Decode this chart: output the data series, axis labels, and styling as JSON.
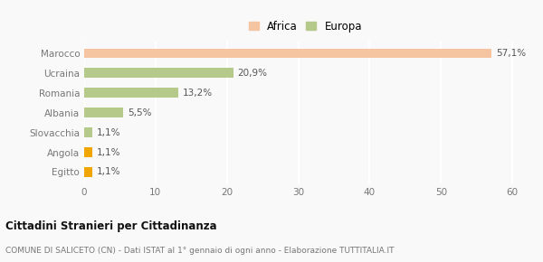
{
  "categories": [
    "Egitto",
    "Angola",
    "Slovacchia",
    "Albania",
    "Romania",
    "Ucraina",
    "Marocco"
  ],
  "values": [
    1.1,
    1.1,
    1.1,
    5.5,
    13.2,
    20.9,
    57.1
  ],
  "labels": [
    "1,1%",
    "1,1%",
    "1,1%",
    "5,5%",
    "13,2%",
    "20,9%",
    "57,1%"
  ],
  "colors": [
    "#f0a500",
    "#f0a500",
    "#b5c98a",
    "#b5c98a",
    "#b5c98a",
    "#b5c98a",
    "#f5c4a0"
  ],
  "legend_items": [
    {
      "label": "Africa",
      "color": "#f5c4a0"
    },
    {
      "label": "Europa",
      "color": "#b5c98a"
    }
  ],
  "xlim": [
    0,
    62
  ],
  "xticks": [
    0,
    10,
    20,
    30,
    40,
    50,
    60
  ],
  "title": "Cittadini Stranieri per Cittadinanza",
  "subtitle": "COMUNE DI SALICETO (CN) - Dati ISTAT al 1° gennaio di ogni anno - Elaborazione TUTTITALIA.IT",
  "background_color": "#f9f9f9",
  "grid_color": "#ffffff",
  "bar_height": 0.5
}
